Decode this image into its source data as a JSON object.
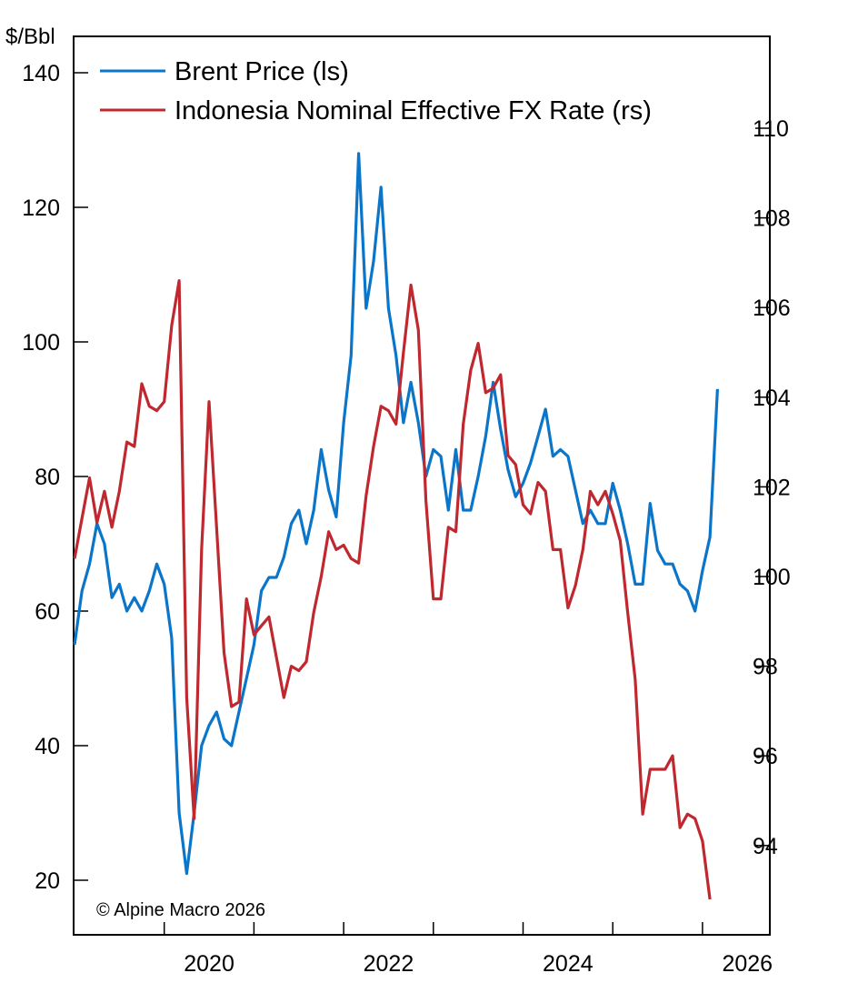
{
  "chart_data": {
    "type": "line",
    "left_axis": {
      "label": "$/Bbl",
      "ylim": [
        12,
        148
      ],
      "ticks": [
        20,
        40,
        60,
        80,
        100,
        120,
        140
      ]
    },
    "right_axis": {
      "label": "",
      "ylim": [
        91.8,
        112.2
      ],
      "ticks": [
        94,
        96,
        98,
        100,
        102,
        104,
        106,
        108,
        110
      ]
    },
    "x_axis": {
      "range": [
        "2019-01",
        "2026-08"
      ],
      "tick_labels": [
        "2020",
        "2022",
        "2024",
        "2026"
      ]
    },
    "legend": {
      "placement": "top-left"
    },
    "grid": false,
    "annotation": "© Alpine Macro 2026",
    "series": [
      {
        "name": "Brent Price (ls)",
        "axis": "left",
        "color": "#0a75c9",
        "start": "2019-01",
        "frequency": "monthly",
        "values": [
          55,
          63,
          67,
          73,
          70,
          62,
          64,
          60,
          62,
          60,
          63,
          67,
          64,
          56,
          30,
          21,
          30,
          40,
          43,
          45,
          41,
          40,
          45,
          50,
          55,
          63,
          65,
          65,
          68,
          73,
          75,
          70,
          75,
          84,
          78,
          74,
          88,
          98,
          128,
          105,
          112,
          123,
          105,
          98,
          88,
          94,
          88,
          80,
          84,
          83,
          75,
          84,
          75,
          75,
          80,
          86,
          94,
          87,
          81,
          77,
          79,
          82,
          86,
          90,
          83,
          84,
          83,
          78,
          73,
          75,
          73,
          73,
          79,
          75,
          70,
          64,
          64,
          76,
          69,
          67,
          67,
          64,
          63,
          60,
          66,
          71,
          93
        ]
      },
      {
        "name": "Indonesia Nominal Effective FX Rate (rs)",
        "axis": "right",
        "color": "#c0282f",
        "start": "2019-01",
        "frequency": "monthly",
        "values": [
          100.4,
          101.3,
          102.2,
          101.2,
          101.9,
          101.1,
          101.9,
          103.0,
          102.9,
          104.3,
          103.8,
          103.7,
          103.9,
          105.6,
          106.6,
          97.3,
          94.6,
          100.6,
          103.9,
          101.1,
          98.3,
          97.1,
          97.2,
          99.5,
          98.7,
          98.9,
          99.1,
          98.2,
          97.3,
          98.0,
          97.9,
          98.1,
          99.2,
          100.0,
          101.0,
          100.6,
          100.7,
          100.4,
          100.3,
          101.8,
          102.9,
          103.8,
          103.7,
          103.4,
          105.0,
          106.5,
          105.5,
          101.7,
          99.5,
          99.5,
          101.1,
          101.0,
          103.4,
          104.6,
          105.2,
          104.1,
          104.2,
          104.5,
          102.7,
          102.5,
          101.6,
          101.4,
          102.1,
          101.9,
          100.6,
          100.6,
          99.3,
          99.8,
          100.6,
          101.9,
          101.6,
          101.9,
          101.4,
          100.8,
          99.2,
          97.7,
          94.7,
          95.7,
          95.7,
          95.7,
          96.0,
          94.4,
          94.7,
          94.6,
          94.1,
          92.8
        ]
      }
    ]
  }
}
